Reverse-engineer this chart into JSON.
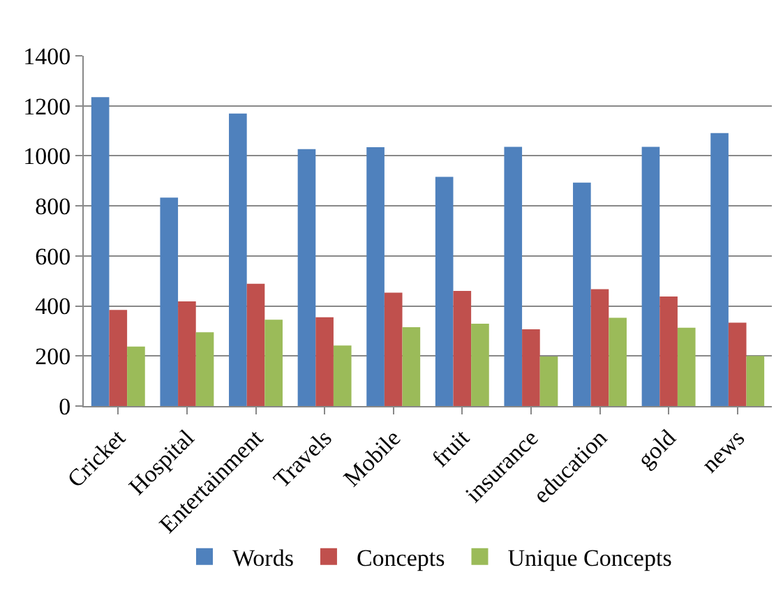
{
  "chart_data": {
    "type": "bar",
    "categories": [
      "Cricket",
      "Hospital",
      "Entertainment",
      "Travels",
      "Mobile",
      "fruit",
      "insurance",
      "education",
      "gold",
      "news"
    ],
    "series": [
      {
        "name": "Words",
        "color": "#4f81bd",
        "values": [
          1235,
          833,
          1169,
          1027,
          1035,
          916,
          1036,
          893,
          1036,
          1091
        ]
      },
      {
        "name": "Concepts",
        "color": "#c0504d",
        "values": [
          384,
          418,
          489,
          355,
          453,
          460,
          307,
          467,
          438,
          333
        ]
      },
      {
        "name": "Unique Concepts",
        "color": "#9bbb59",
        "values": [
          238,
          295,
          345,
          242,
          315,
          329,
          198,
          353,
          313,
          200
        ]
      }
    ],
    "ylim": [
      0,
      1400
    ],
    "yticks": [
      0,
      200,
      400,
      600,
      800,
      1000,
      1200,
      1400
    ],
    "grid": "y",
    "legend": "bottom"
  }
}
